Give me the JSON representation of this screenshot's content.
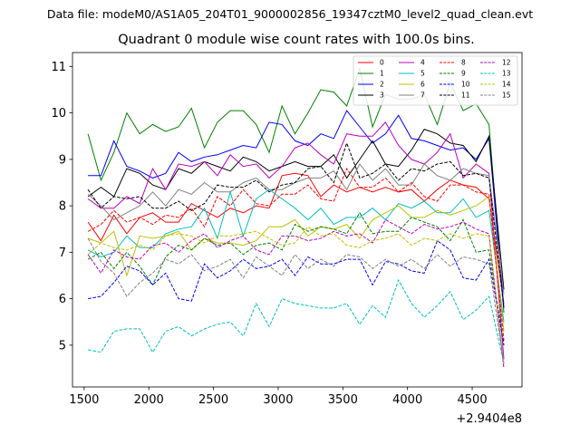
{
  "chart_data": {
    "type": "line",
    "suptitle": "Data file: modeM0/AS1A05_204T01_9000002856_19347cztM0_level2_quad_clean.evt",
    "title": "Quadrant 0 module wise count rates with 100.0s bins.",
    "xlabel": "",
    "ylabel": "",
    "x_offset_label": "+2.9404e8",
    "xlim": [
      1410,
      4885
    ],
    "ylim": [
      4.1,
      11.3
    ],
    "xticks": [
      1500,
      2000,
      2500,
      3000,
      3500,
      4000,
      4500
    ],
    "yticks": [
      5,
      6,
      7,
      8,
      9,
      10,
      11
    ],
    "legend_location": "top-right",
    "legend_columns": 4,
    "x": [
      1530,
      1630,
      1730,
      1830,
      1930,
      2030,
      2130,
      2230,
      2330,
      2430,
      2530,
      2630,
      2730,
      2830,
      2930,
      3030,
      3130,
      3230,
      3330,
      3430,
      3530,
      3630,
      3730,
      3830,
      3930,
      4030,
      4130,
      4230,
      4330,
      4430,
      4530,
      4630,
      4745
    ],
    "series": [
      {
        "name": "0",
        "color": "#ff0000",
        "dashed": false,
        "values": [
          7.65,
          7.25,
          7.8,
          7.4,
          7.75,
          7.85,
          7.65,
          7.65,
          8.05,
          7.9,
          7.75,
          7.95,
          7.85,
          8.0,
          7.95,
          8.65,
          8.7,
          8.65,
          8.2,
          8.45,
          8.3,
          8.4,
          8.3,
          8.4,
          8.3,
          8.35,
          8.1,
          8.35,
          8.55,
          8.45,
          8.4,
          8.15,
          5.9
        ]
      },
      {
        "name": "1",
        "color": "#008000",
        "dashed": false,
        "values": [
          9.55,
          8.55,
          9.15,
          10.0,
          9.55,
          9.75,
          9.6,
          9.7,
          10.1,
          9.25,
          9.8,
          10.05,
          10.05,
          9.75,
          9.15,
          10.15,
          9.55,
          10.0,
          10.5,
          10.45,
          10.15,
          10.95,
          9.7,
          10.4,
          10.3,
          10.3,
          10.4,
          9.75,
          10.65,
          10.05,
          10.2,
          9.75,
          5.7
        ]
      },
      {
        "name": "2",
        "color": "#0000ff",
        "dashed": false,
        "values": [
          8.65,
          8.65,
          9.4,
          8.85,
          8.75,
          8.6,
          8.7,
          9.15,
          8.95,
          9.05,
          9.1,
          9.2,
          9.3,
          9.25,
          9.8,
          9.75,
          9.4,
          9.3,
          9.55,
          9.45,
          10.05,
          9.7,
          9.35,
          9.55,
          9.95,
          9.45,
          9.4,
          9.3,
          9.2,
          9.25,
          9.0,
          9.45,
          5.8
        ]
      },
      {
        "name": "3",
        "color": "#000000",
        "dashed": false,
        "values": [
          8.2,
          8.4,
          8.2,
          8.8,
          8.7,
          8.45,
          8.35,
          8.8,
          8.7,
          8.95,
          8.85,
          8.75,
          9.05,
          8.95,
          8.75,
          8.85,
          8.95,
          8.85,
          8.85,
          9.1,
          8.6,
          9.0,
          9.4,
          8.9,
          8.85,
          9.2,
          9.65,
          9.55,
          9.35,
          9.3,
          8.95,
          9.5,
          6.2
        ]
      },
      {
        "name": "4",
        "color": "#bf00bf",
        "dashed": false,
        "values": [
          8.15,
          7.95,
          7.95,
          8.2,
          8.05,
          8.8,
          8.35,
          8.9,
          8.85,
          8.95,
          8.65,
          9.1,
          8.85,
          8.9,
          8.6,
          8.85,
          9.25,
          9.35,
          9.1,
          8.9,
          9.55,
          9.5,
          9.5,
          9.8,
          9.3,
          9.0,
          8.9,
          9.15,
          9.55,
          8.6,
          8.9,
          8.7,
          4.7
        ]
      },
      {
        "name": "5",
        "color": "#00bfbf",
        "dashed": false,
        "values": [
          7.05,
          6.9,
          7.0,
          7.35,
          7.1,
          7.1,
          7.4,
          7.5,
          7.55,
          7.95,
          7.3,
          8.3,
          7.35,
          8.15,
          8.35,
          8.15,
          7.95,
          7.7,
          7.95,
          7.6,
          7.75,
          7.75,
          7.95,
          7.7,
          8.05,
          7.95,
          8.1,
          7.85,
          7.85,
          8.15,
          7.75,
          7.9,
          5.5
        ]
      },
      {
        "name": "6",
        "color": "#bfbf00",
        "dashed": false,
        "values": [
          7.3,
          7.2,
          7.45,
          6.5,
          7.35,
          7.3,
          7.35,
          7.45,
          7.05,
          7.3,
          7.2,
          7.2,
          7.15,
          7.25,
          7.55,
          7.55,
          7.7,
          7.35,
          7.55,
          7.5,
          7.6,
          7.3,
          7.7,
          7.85,
          8.0,
          7.75,
          7.75,
          7.9,
          7.8,
          7.9,
          8.0,
          8.2,
          5.3
        ]
      },
      {
        "name": "7",
        "color": "#808080",
        "dashed": false,
        "values": [
          8.25,
          8.0,
          7.7,
          7.85,
          8.0,
          8.3,
          8.0,
          8.35,
          8.25,
          8.5,
          8.3,
          8.3,
          8.5,
          8.6,
          8.35,
          8.35,
          8.5,
          8.6,
          8.6,
          8.75,
          8.35,
          8.9,
          8.55,
          8.8,
          8.45,
          8.45,
          8.9,
          8.65,
          8.55,
          8.8,
          8.7,
          8.65,
          6.1
        ]
      },
      {
        "name": "8",
        "color": "#ff0000",
        "dashed": true,
        "values": [
          7.45,
          7.6,
          7.9,
          7.65,
          7.75,
          7.6,
          7.8,
          7.75,
          7.95,
          7.55,
          8.2,
          8.0,
          8.35,
          8.05,
          8.0,
          8.25,
          8.25,
          8.45,
          8.15,
          8.1,
          8.8,
          8.4,
          8.4,
          8.6,
          8.3,
          8.5,
          8.2,
          8.1,
          8.45,
          8.45,
          8.3,
          8.25,
          5.1
        ]
      },
      {
        "name": "9",
        "color": "#008000",
        "dashed": true,
        "values": [
          6.85,
          7.0,
          6.65,
          7.0,
          6.7,
          6.3,
          6.9,
          7.15,
          7.05,
          7.3,
          7.15,
          7.2,
          6.95,
          7.15,
          7.2,
          7.05,
          7.6,
          7.45,
          7.55,
          7.5,
          7.4,
          7.85,
          7.4,
          7.45,
          7.45,
          7.75,
          7.65,
          7.55,
          7.25,
          7.7,
          7.0,
          7.05,
          5.0
        ]
      },
      {
        "name": "10",
        "color": "#0000ff",
        "dashed": true,
        "values": [
          6.0,
          6.05,
          6.35,
          6.7,
          6.6,
          6.3,
          6.55,
          6.0,
          5.95,
          6.75,
          6.45,
          6.6,
          6.85,
          6.65,
          6.7,
          6.85,
          6.5,
          6.9,
          6.75,
          6.75,
          6.85,
          6.85,
          6.3,
          6.8,
          6.75,
          6.6,
          6.55,
          7.25,
          7.05,
          6.45,
          6.4,
          6.85,
          5.0
        ]
      },
      {
        "name": "11",
        "color": "#000000",
        "dashed": true,
        "values": [
          8.35,
          7.95,
          8.2,
          8.15,
          8.2,
          7.95,
          7.95,
          8.1,
          7.9,
          8.05,
          8.45,
          8.4,
          8.4,
          8.55,
          8.3,
          8.45,
          8.5,
          8.8,
          8.85,
          8.5,
          9.35,
          8.6,
          8.7,
          8.9,
          8.55,
          8.8,
          8.75,
          8.9,
          8.95,
          8.65,
          8.7,
          8.6,
          5.8
        ]
      },
      {
        "name": "12",
        "color": "#bf00bf",
        "dashed": true,
        "values": [
          6.95,
          6.55,
          7.05,
          6.9,
          6.85,
          7.15,
          7.2,
          7.0,
          7.25,
          7.4,
          7.1,
          7.25,
          7.35,
          7.05,
          6.95,
          7.35,
          7.35,
          7.25,
          7.3,
          7.45,
          7.35,
          7.4,
          7.2,
          7.7,
          7.55,
          7.4,
          7.6,
          7.5,
          7.55,
          7.65,
          7.5,
          7.4,
          4.5
        ]
      },
      {
        "name": "13",
        "color": "#00bfbf",
        "dashed": true,
        "values": [
          4.9,
          4.85,
          5.3,
          5.35,
          5.35,
          4.85,
          5.3,
          5.4,
          5.2,
          5.35,
          5.45,
          5.5,
          5.2,
          5.9,
          5.4,
          6.0,
          5.9,
          5.85,
          5.8,
          5.8,
          5.9,
          5.45,
          5.85,
          5.6,
          6.4,
          5.9,
          5.6,
          5.85,
          6.15,
          5.55,
          5.75,
          6.05,
          4.6
        ]
      },
      {
        "name": "14",
        "color": "#bfbf00",
        "dashed": true,
        "values": [
          6.95,
          7.2,
          7.1,
          7.05,
          7.15,
          7.05,
          7.35,
          7.4,
          7.35,
          7.2,
          7.35,
          7.35,
          7.4,
          7.45,
          7.3,
          7.15,
          7.2,
          7.55,
          7.35,
          7.4,
          7.15,
          7.1,
          7.25,
          7.3,
          7.4,
          7.15,
          7.3,
          7.25,
          7.4,
          7.3,
          7.4,
          7.35,
          4.6
        ]
      },
      {
        "name": "15",
        "color": "#808080",
        "dashed": true,
        "values": [
          7.3,
          6.8,
          6.55,
          6.05,
          6.35,
          6.55,
          6.85,
          6.75,
          6.95,
          6.6,
          6.7,
          6.85,
          6.45,
          6.9,
          6.7,
          6.5,
          6.95,
          6.65,
          6.85,
          6.7,
          6.95,
          6.9,
          6.65,
          6.85,
          6.7,
          6.85,
          6.65,
          6.95,
          6.7,
          6.9,
          6.85,
          6.75,
          4.6
        ]
      }
    ]
  }
}
